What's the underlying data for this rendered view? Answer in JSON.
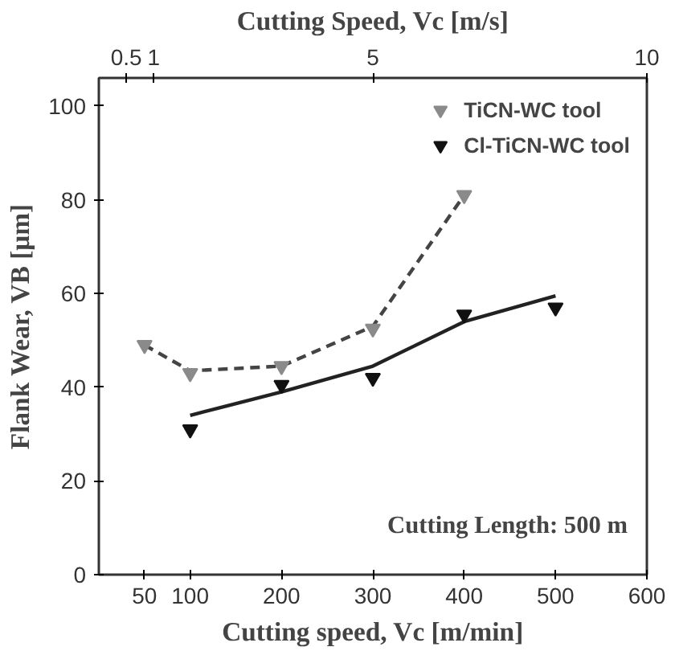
{
  "chart_data": {
    "type": "scatter",
    "xlabel": "Cutting speed, Vc [m/min]",
    "x2label": "Cutting Speed, Vc [m/s]",
    "ylabel": "Flank Wear, VB [μm]",
    "xlim": [
      0,
      600
    ],
    "xticks": [
      50,
      100,
      200,
      300,
      400,
      500,
      600
    ],
    "x2lim": [
      0,
      10
    ],
    "x2ticks": [
      0.5,
      1,
      5,
      10
    ],
    "ylim": [
      0,
      106
    ],
    "yticks": [
      0,
      20,
      40,
      60,
      80,
      100
    ],
    "grid": false,
    "legend": "top right",
    "annotations": [
      "Cutting Length: 500 m"
    ],
    "series": [
      {
        "type": "line",
        "marker": "none",
        "line_style": "dashed",
        "color": "#444444",
        "x": [
          50,
          100,
          200,
          300,
          400
        ],
        "values": [
          49,
          43.5,
          44.5,
          53,
          81
        ]
      },
      {
        "type": "line",
        "marker": "none",
        "line_style": "solid",
        "color": "#222222",
        "x": [
          100,
          200,
          300,
          400,
          500
        ],
        "values": [
          34,
          39,
          44.5,
          54,
          59.5
        ]
      },
      {
        "name": "TiCN-WC tool",
        "marker": "triangle",
        "color": "#8a8a8a",
        "x": [
          50,
          100,
          200,
          300,
          400
        ],
        "values": [
          49,
          43,
          44.5,
          52.5,
          81
        ]
      },
      {
        "name": "Cl-TiCN-WC tool",
        "marker": "triangle",
        "color": "#111111",
        "x": [
          100,
          200,
          300,
          400,
          500
        ],
        "values": [
          31,
          40.5,
          42,
          55.5,
          57
        ]
      }
    ]
  }
}
